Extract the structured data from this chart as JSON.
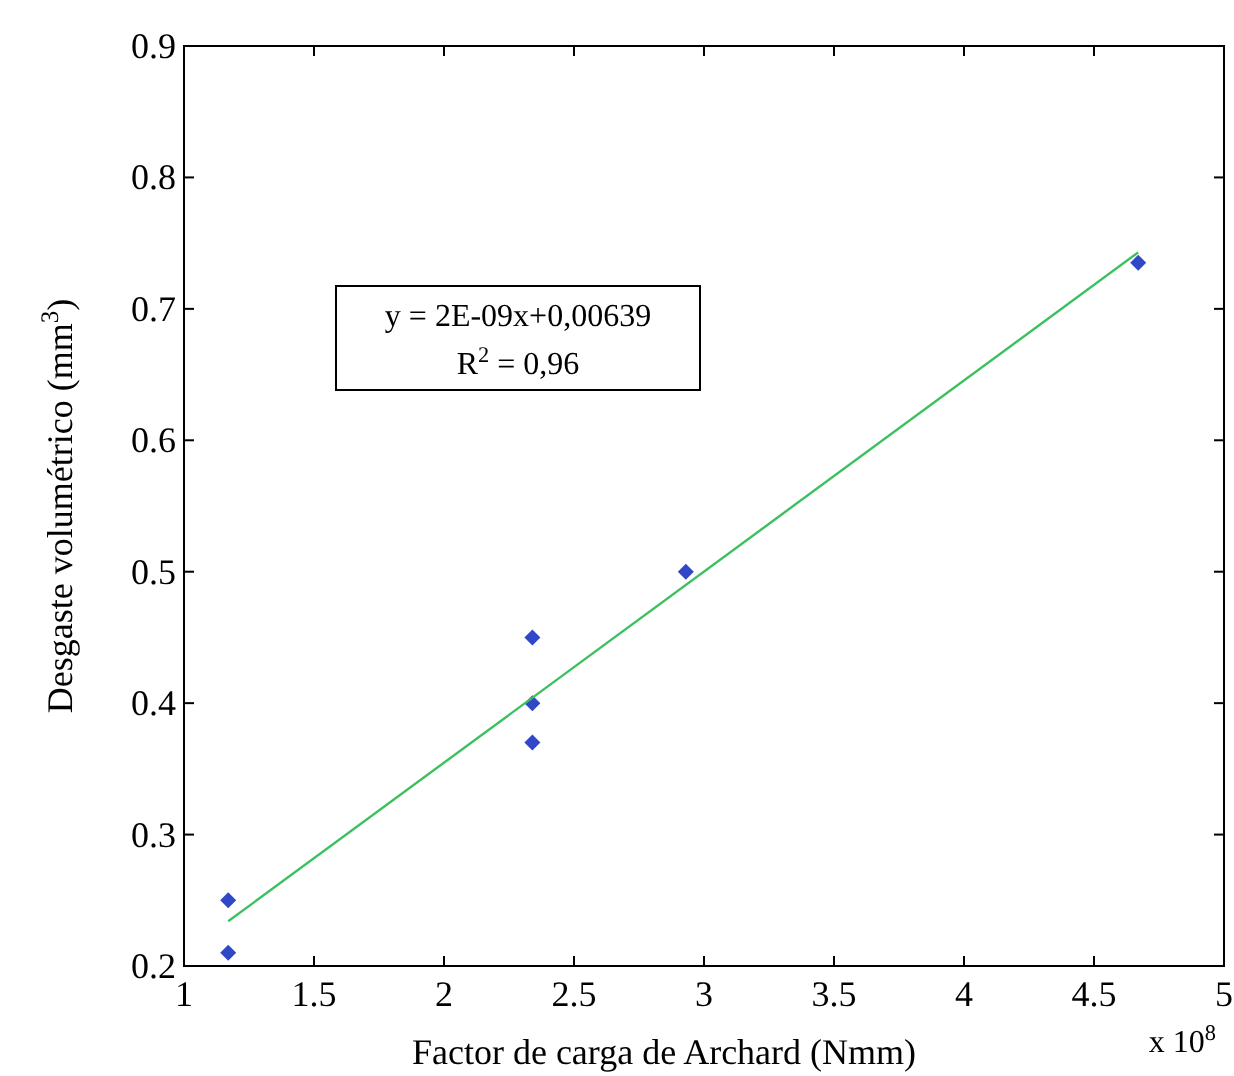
{
  "chart_data": {
    "type": "scatter",
    "xlabel": "Factor de carga de Archard (Nmm)",
    "ylabel": "Desgaste volumétrico (mm$^{3}$)",
    "xlim": [
      1,
      5
    ],
    "xticks": [
      1,
      1.5,
      2,
      2.5,
      3,
      3.5,
      4,
      4.5,
      5
    ],
    "ylim": [
      0.2,
      0.9
    ],
    "yticks": [
      0.2,
      0.3,
      0.4,
      0.5,
      0.6,
      0.7,
      0.8,
      0.9
    ],
    "grid": false,
    "series": [
      {
        "color": "#3048c8",
        "marker": "diamond",
        "x": [
          1.17,
          1.17,
          2.34,
          2.34,
          2.34,
          2.93,
          4.67
        ],
        "values": [
          0.25,
          0.21,
          0.45,
          0.4,
          0.37,
          0.5,
          0.735
        ]
      },
      {
        "type": "line",
        "color": "#3cc060",
        "marker": "none",
        "line_style": "solid",
        "x": [
          1.17,
          4.67
        ],
        "values": [
          0.234,
          0.743
        ]
      }
    ],
    "annotations": [
      "y = 2E-09x+0,00639",
      "R$^{2}$ = 0,96",
      "x 10$^{8}$"
    ]
  }
}
